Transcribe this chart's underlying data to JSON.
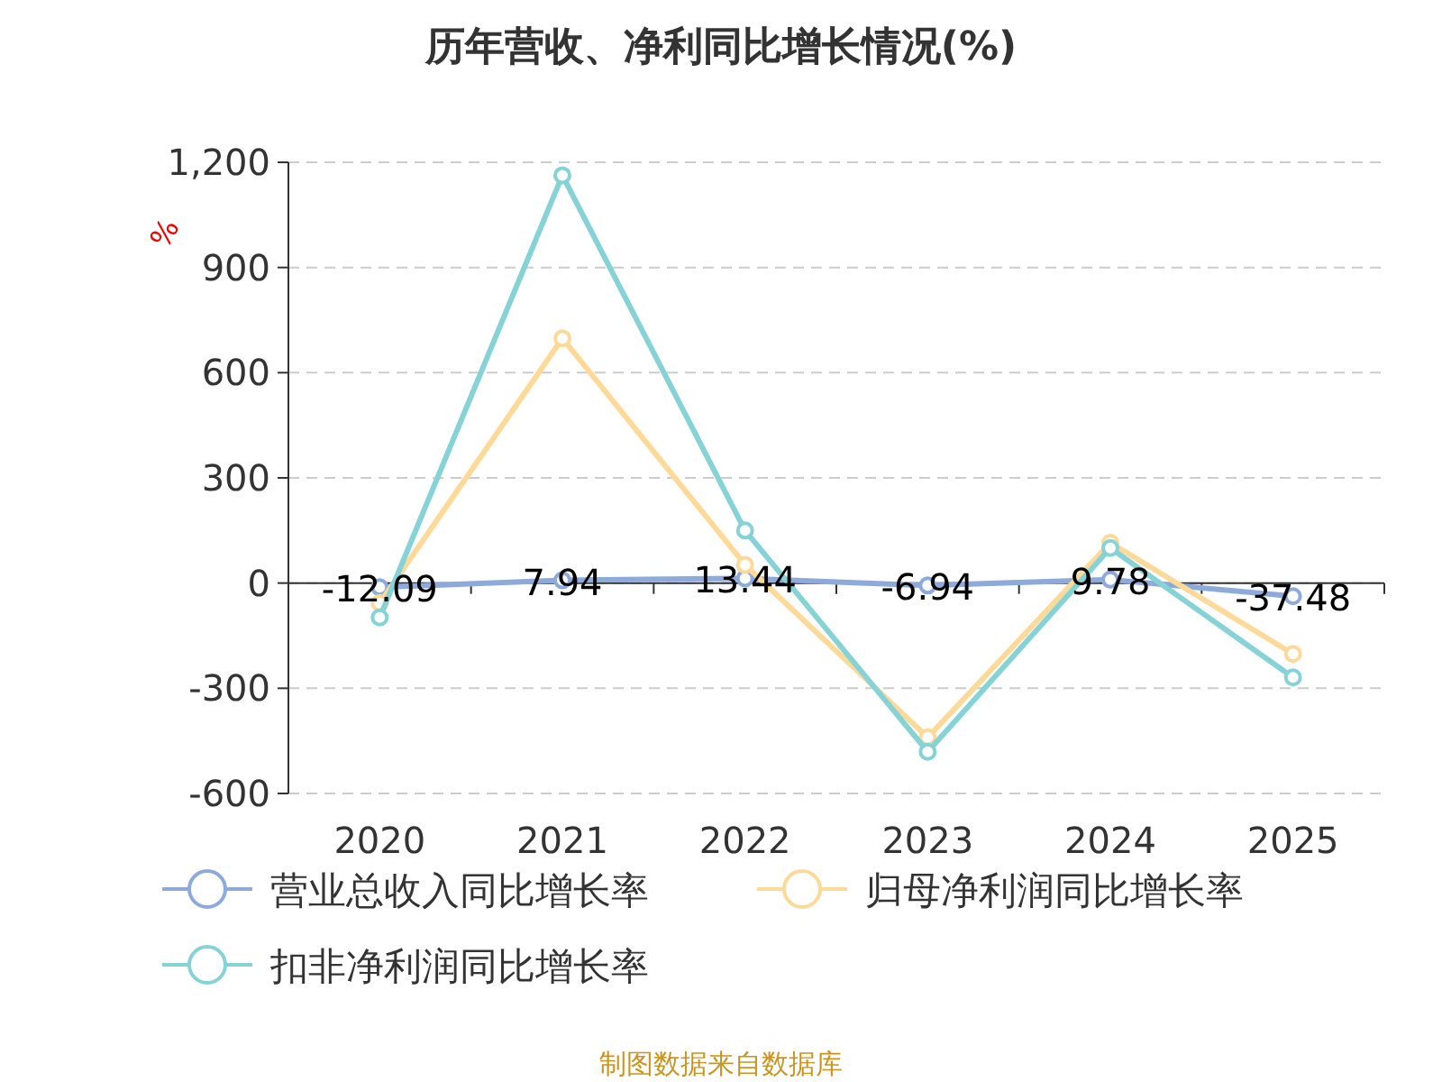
{
  "chart_data": {
    "type": "line",
    "title": "历年营收、净利同比增长情况(%)",
    "ylabel": "%",
    "categories": [
      "2020",
      "2021",
      "2022",
      "2023",
      "2024",
      "2025"
    ],
    "series": [
      {
        "name": "营业总收入同比增长率",
        "color": "#8eaadb",
        "values": [
          -12.09,
          7.94,
          13.44,
          -6.94,
          9.78,
          -37.48
        ],
        "data_labels": true
      },
      {
        "name": "归母净利润同比增长率",
        "color": "#ffd998",
        "values": [
          -57,
          698,
          52,
          -440,
          115,
          -202
        ]
      },
      {
        "name": "扣非净利润同比增长率",
        "color": "#85d3d6",
        "values": [
          -98,
          1163,
          150,
          -481,
          100,
          -269
        ]
      }
    ],
    "ylim": [
      -600,
      1200
    ],
    "yticks": [
      -600,
      -300,
      0,
      {
        "value": 300,
        "label": "300"
      },
      600,
      900,
      {
        "value": 1200,
        "label": "1,200"
      }
    ],
    "grid": "y",
    "legend": "bottom",
    "marker": "circle",
    "line_style": "solid",
    "annotations": [
      "制图数据来自数据库"
    ]
  }
}
